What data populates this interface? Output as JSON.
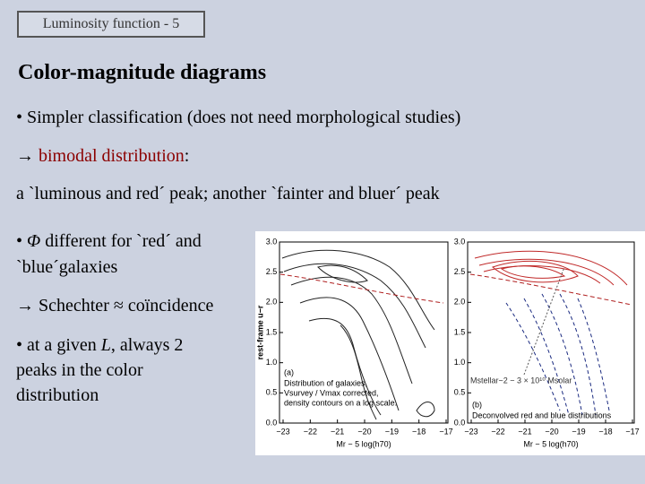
{
  "header": "Luminosity function - 5",
  "title": "Color-magnitude diagrams",
  "bullet1": "• Simpler classification (does not need morphological studies)",
  "bullet2": {
    "arrow": "→ ",
    "emph": "bimodal distribution",
    "rest": ":"
  },
  "bullet3": "a `luminous and red´ peak; another `fainter and bluer´ peak",
  "bullet4": {
    "dot": "• ",
    "symbol": "Φ",
    "line1": " different for `red´ and",
    "line2": "`blue´galaxies"
  },
  "bullet5": "→ Schechter ≈ coïncidence",
  "bullet6": {
    "line1a": "• at a given ",
    "symbol": "L",
    "line1b": ", always 2",
    "line2": "peaks in the color",
    "line3": "distribution"
  },
  "figure": {
    "yticks": [
      "3.0",
      "2.5",
      "2.0",
      "1.5",
      "1.0",
      "0.5",
      "0.0"
    ],
    "xticks": [
      "−23",
      "−22",
      "−21",
      "−20",
      "−19",
      "−18",
      "−17"
    ],
    "ylabel": "rest-frame u−r",
    "panel_a": {
      "xlabel": "Mr − 5 log(h70)",
      "tag": "(a)",
      "notes": [
        "Distribution of galaxies,",
        "Vsurvey / Vmax corrected,",
        "density contours on a log scale."
      ]
    },
    "panel_b": {
      "xlabel": "Mr − 5 log(h70)",
      "tag": "(b)",
      "mass": "Mstellar~2 − 3 × 10¹⁰ Msolar",
      "notes": [
        "Deconvolved red and blue distributions"
      ]
    }
  }
}
